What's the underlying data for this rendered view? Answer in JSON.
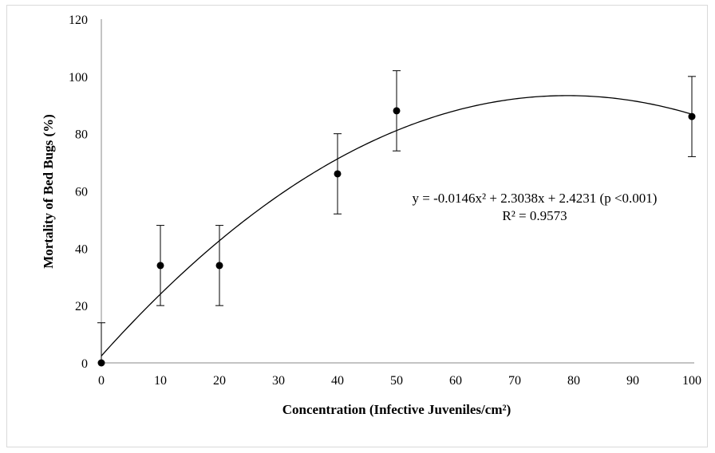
{
  "chart_data": {
    "type": "scatter",
    "xlabel": "Concentration (Infective Juveniles/cm²)",
    "ylabel": "Mortality of Bed Bugs (%)",
    "xlim": [
      0,
      100
    ],
    "ylim": [
      0,
      120
    ],
    "x_ticks": [
      0,
      10,
      20,
      30,
      40,
      50,
      60,
      70,
      80,
      90,
      100
    ],
    "y_ticks": [
      0,
      20,
      40,
      60,
      80,
      100,
      120
    ],
    "points": [
      {
        "x": 0,
        "y": 0,
        "err": 14
      },
      {
        "x": 10,
        "y": 34,
        "err": 14
      },
      {
        "x": 20,
        "y": 34,
        "err": 14
      },
      {
        "x": 40,
        "y": 66,
        "err": 14
      },
      {
        "x": 50,
        "y": 88,
        "err": 14
      },
      {
        "x": 100,
        "y": 86,
        "err": 14
      }
    ],
    "trendline": {
      "a": -0.0146,
      "b": 2.3038,
      "c": 2.4231
    },
    "equation": "y = -0.0146x² + 2.3038x + 2.4231 (p <0.001)",
    "r_squared": "R² = 0.9573",
    "grid": false,
    "colors": {
      "marker": "#000000",
      "line": "#000000"
    }
  }
}
